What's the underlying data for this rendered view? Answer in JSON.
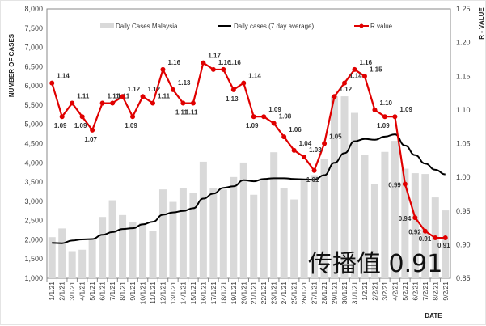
{
  "chart_data": {
    "type": "bar+line",
    "title": "",
    "overlay_text": "传播值 0.91",
    "xlabel": "DATE",
    "ylabel": "NUMBER OF CASES",
    "y2label": "R - VALUE",
    "ylim": [
      1000,
      8000
    ],
    "y2lim": [
      0.85,
      1.25
    ],
    "yticks": [
      "1,000",
      "1,500",
      "2,000",
      "2,500",
      "3,000",
      "3,500",
      "4,000",
      "4,500",
      "5,000",
      "5,500",
      "6,000",
      "6,500",
      "7,000",
      "7,500",
      "8,000"
    ],
    "y2ticks": [
      "0.85",
      "0.90",
      "0.95",
      "1.00",
      "1.05",
      "1.10",
      "1.15",
      "1.20",
      "1.25"
    ],
    "legend_position": "top",
    "categories": [
      "1/1/21",
      "2/1/21",
      "3/1/21",
      "4/1/21",
      "5/1/21",
      "6/1/21",
      "7/1/21",
      "8/1/21",
      "9/1/21",
      "10/1/21",
      "11/1/21",
      "12/1/21",
      "13/1/21",
      "14/1/21",
      "15/1/21",
      "16/1/21",
      "17/1/21",
      "18/1/21",
      "19/1/21",
      "20/1/21",
      "21/1/21",
      "22/1/21",
      "23/1/21",
      "24/1/21",
      "25/1/21",
      "26/1/21",
      "27/1/21",
      "28/1/21",
      "29/1/21",
      "30/1/21",
      "31/1/21",
      "1/2/21",
      "2/2/21",
      "3/2/21",
      "4/2/21",
      "5/2/21",
      "6/2/21",
      "7/2/21",
      "8/2/21",
      "9/2/21"
    ],
    "series": [
      {
        "name": "Daily Cases Malaysia",
        "type": "bar",
        "axis": "left",
        "color": "#d9d9d9",
        "values": [
          2068,
          2295,
          1704,
          1741,
          2027,
          2593,
          3027,
          2643,
          2451,
          2433,
          2232,
          3309,
          2985,
          3337,
          3211,
          4029,
          3346,
          3306,
          3631,
          4008,
          3170,
          3586,
          4275,
          3346,
          3048,
          3585,
          3680,
          4094,
          5725,
          5728,
          5298,
          4214,
          3455,
          4284,
          4571,
          3847,
          3731,
          3710,
          3100,
          2764
        ]
      },
      {
        "name": "Daily cases (7 day average)",
        "type": "line",
        "axis": "left",
        "color": "#000000",
        "values": [
          1920,
          1910,
          1980,
          2010,
          2020,
          2130,
          2200,
          2280,
          2300,
          2400,
          2470,
          2650,
          2710,
          2750,
          2820,
          3070,
          3200,
          3350,
          3390,
          3550,
          3520,
          3580,
          3600,
          3600,
          3580,
          3570,
          3560,
          3680,
          4000,
          4250,
          4560,
          4620,
          4600,
          4680,
          4740,
          4450,
          4200,
          3980,
          3820,
          3700
        ]
      },
      {
        "name": "R value",
        "type": "line",
        "axis": "right",
        "color": "#e00000",
        "values": [
          1.14,
          1.09,
          1.11,
          1.09,
          1.07,
          1.11,
          1.11,
          1.12,
          1.09,
          1.12,
          1.11,
          1.16,
          1.13,
          1.11,
          1.11,
          1.17,
          1.16,
          1.16,
          1.13,
          1.14,
          1.09,
          1.09,
          1.08,
          1.06,
          1.04,
          1.03,
          1.01,
          1.05,
          1.12,
          1.14,
          1.16,
          1.15,
          1.1,
          1.09,
          1.09,
          0.99,
          0.94,
          0.92,
          0.91,
          0.91
        ],
        "labels": [
          "1.14",
          "1.09",
          "1.11",
          "1.09",
          "1.07",
          "1.11",
          "1.11",
          "1.12",
          "1.09",
          "1.12",
          "1.11",
          "1.16",
          "1.13",
          "1.11",
          "1.11",
          "1.17",
          "1.16",
          "1.16",
          "1.13",
          "1.14",
          "1.09",
          "1.09",
          "1.08",
          "1.06",
          "1.04",
          "1.03",
          "1.01",
          "1.05",
          "1.12",
          "1.14",
          "1.16",
          "1.15",
          "1.10",
          "1.09",
          "1.09",
          "0.99",
          "0.94",
          "0.92",
          "0.91",
          "0.91"
        ]
      }
    ]
  }
}
